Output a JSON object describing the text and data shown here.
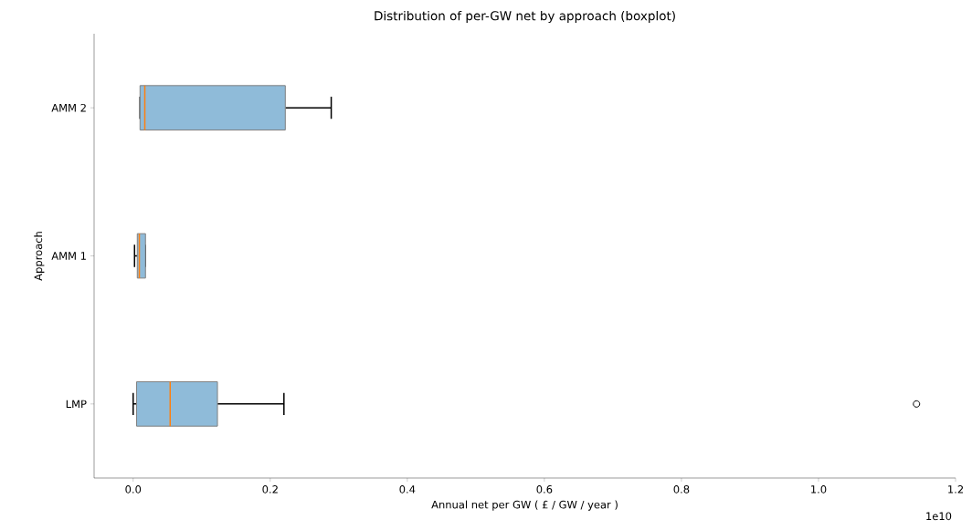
{
  "chart_data": {
    "type": "box",
    "title": "Distribution of per-GW net by approach (boxplot)",
    "xlabel": "Annual net per GW ( £ / GW / year )",
    "ylabel": "Approach",
    "orientation": "horizontal",
    "categories": [
      "AMM 2",
      "AMM 1",
      "LMP"
    ],
    "color": "#8fbbd9",
    "boxes": [
      {
        "low": 0.01,
        "q1": 0.01,
        "median": 0.017,
        "q3": 0.222,
        "high": 0.289
      },
      {
        "low": 0.002,
        "q1": 0.006,
        "median": 0.009,
        "q3": 0.018,
        "high": 0.018
      },
      {
        "low": 0,
        "q1": 0.005,
        "median": 0.054,
        "q3": 0.123,
        "high": 0.22,
        "outliers": [
          1.143
        ]
      }
    ],
    "xlim": [
      -0.057,
      1.2
    ],
    "xticks": [
      {
        "value": 0,
        "label": "0.0"
      },
      0.2,
      0.4,
      0.6,
      0.8,
      {
        "value": 1,
        "label": "1.0"
      },
      1.2
    ],
    "annotations": [
      "1e10"
    ]
  }
}
